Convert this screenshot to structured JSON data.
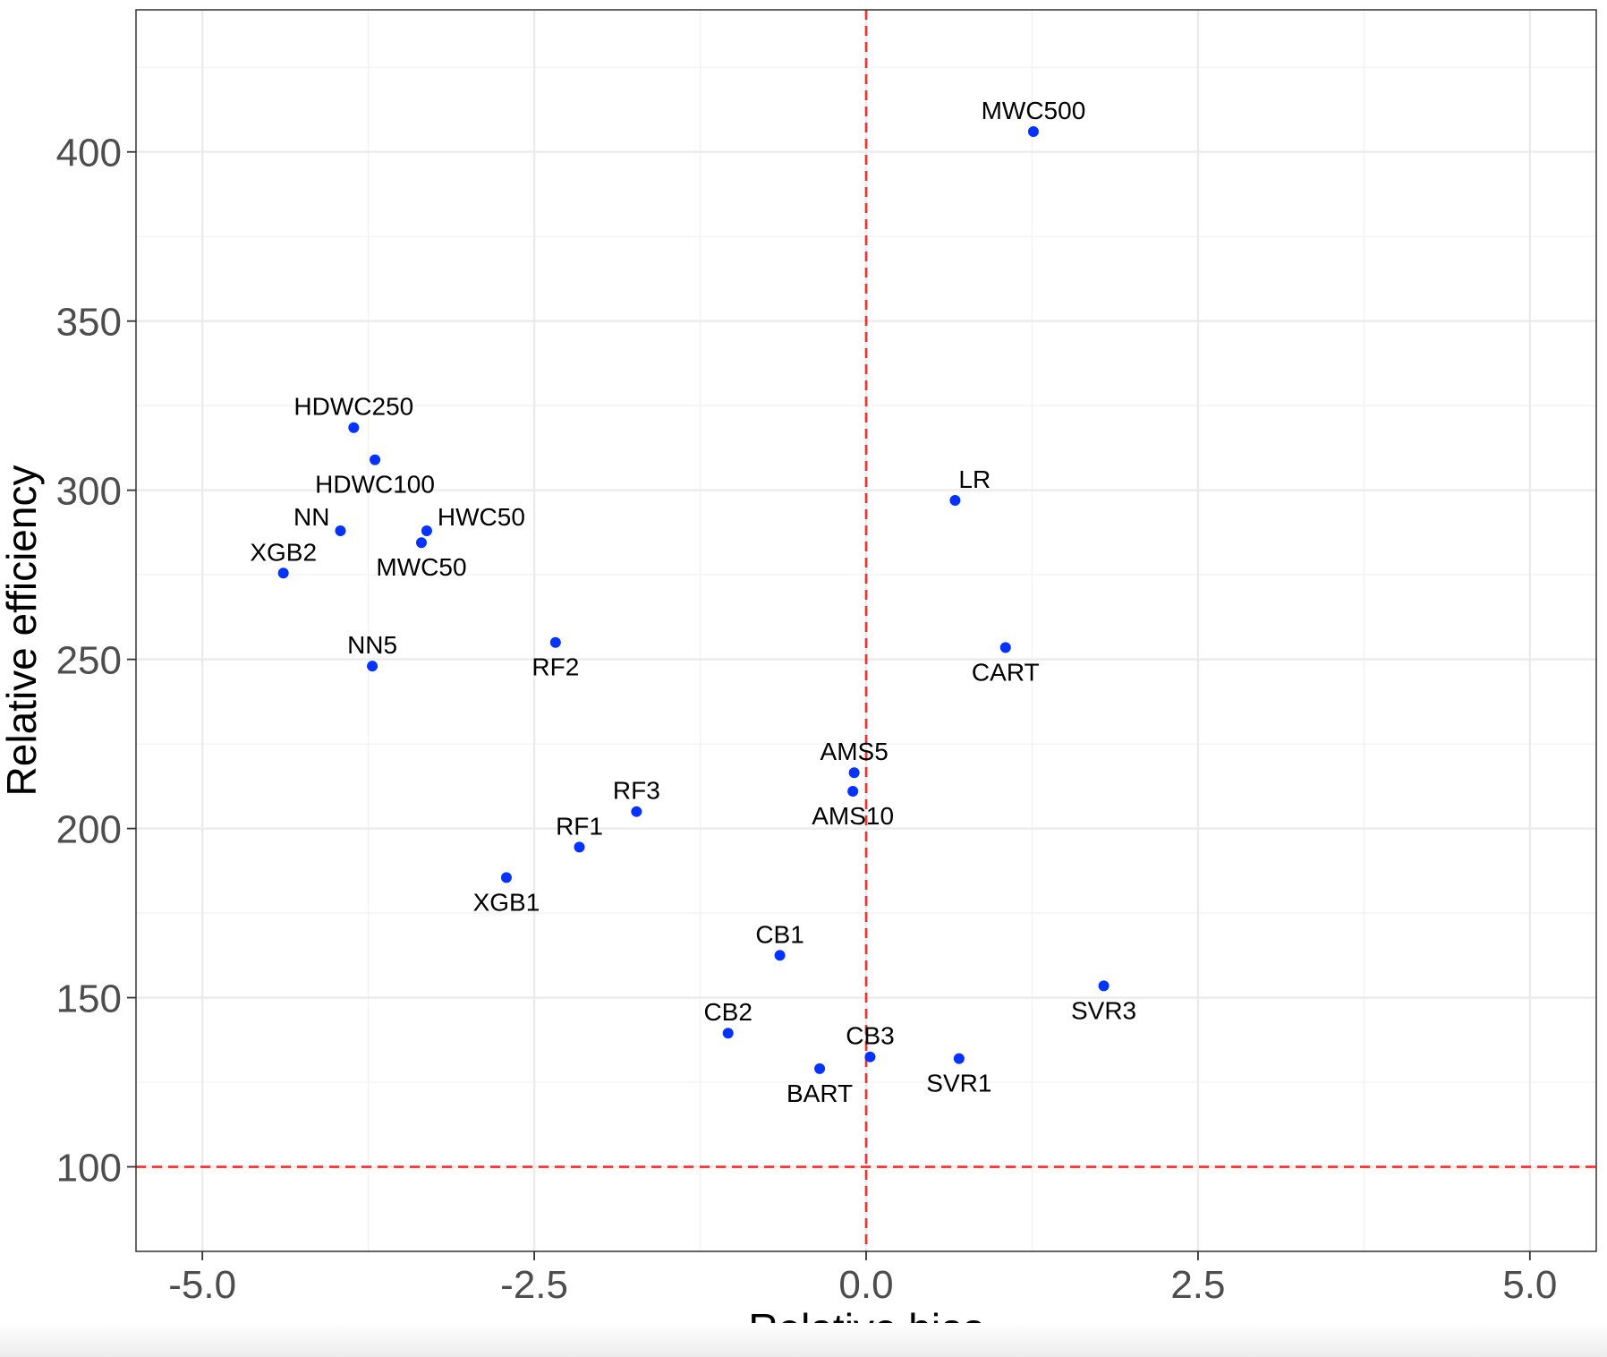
{
  "chart_data": {
    "type": "scatter",
    "title": "",
    "xlabel": "Relative bias",
    "ylabel": "Relative efficiency",
    "xlim": [
      -5.5,
      5.5
    ],
    "ylim": [
      75,
      442
    ],
    "xticks": [
      -5.0,
      -2.5,
      0.0,
      2.5,
      5.0
    ],
    "xtick_labels": [
      "-5.0",
      "-2.5",
      "0.0",
      "2.5",
      "5.0"
    ],
    "yticks": [
      100,
      150,
      200,
      250,
      300,
      350,
      400
    ],
    "ytick_labels": [
      "100",
      "150",
      "200",
      "250",
      "300",
      "350",
      "400"
    ],
    "grid": true,
    "point_color": "#0433ff",
    "reference_color": "#ff2a2a",
    "reference_lines": {
      "x": 0.0,
      "y": 100
    },
    "points": [
      {
        "label": "MWC500",
        "x": 1.26,
        "y": 406,
        "label_pos": "above"
      },
      {
        "label": "HDWC250",
        "x": -3.86,
        "y": 318.5,
        "label_pos": "above"
      },
      {
        "label": "HDWC100",
        "x": -3.7,
        "y": 309,
        "label_pos": "below"
      },
      {
        "label": "LR",
        "x": 0.67,
        "y": 297,
        "label_pos": "above-right"
      },
      {
        "label": "NN",
        "x": -3.96,
        "y": 288,
        "label_pos": "left"
      },
      {
        "label": "HWC50",
        "x": -3.31,
        "y": 288,
        "label_pos": "right"
      },
      {
        "label": "MWC50",
        "x": -3.35,
        "y": 284.5,
        "label_pos": "below"
      },
      {
        "label": "XGB2",
        "x": -4.39,
        "y": 275.5,
        "label_pos": "above"
      },
      {
        "label": "RF2",
        "x": -2.34,
        "y": 255,
        "label_pos": "below"
      },
      {
        "label": "CART",
        "x": 1.05,
        "y": 253.5,
        "label_pos": "below"
      },
      {
        "label": "NN5",
        "x": -3.72,
        "y": 248,
        "label_pos": "above"
      },
      {
        "label": "AMS5",
        "x": -0.09,
        "y": 216.5,
        "label_pos": "above"
      },
      {
        "label": "AMS10",
        "x": -0.1,
        "y": 211,
        "label_pos": "below"
      },
      {
        "label": "RF3",
        "x": -1.73,
        "y": 205,
        "label_pos": "above"
      },
      {
        "label": "RF1",
        "x": -2.16,
        "y": 194.5,
        "label_pos": "above"
      },
      {
        "label": "XGB1",
        "x": -2.71,
        "y": 185.5,
        "label_pos": "below"
      },
      {
        "label": "CB1",
        "x": -0.65,
        "y": 162.5,
        "label_pos": "above"
      },
      {
        "label": "SVR3",
        "x": 1.79,
        "y": 153.5,
        "label_pos": "below"
      },
      {
        "label": "CB2",
        "x": -1.04,
        "y": 139.5,
        "label_pos": "above"
      },
      {
        "label": "CB3",
        "x": 0.03,
        "y": 132.5,
        "label_pos": "above"
      },
      {
        "label": "SVR1",
        "x": 0.7,
        "y": 132,
        "label_pos": "below"
      },
      {
        "label": "BART",
        "x": -0.35,
        "y": 129,
        "label_pos": "below"
      }
    ]
  }
}
